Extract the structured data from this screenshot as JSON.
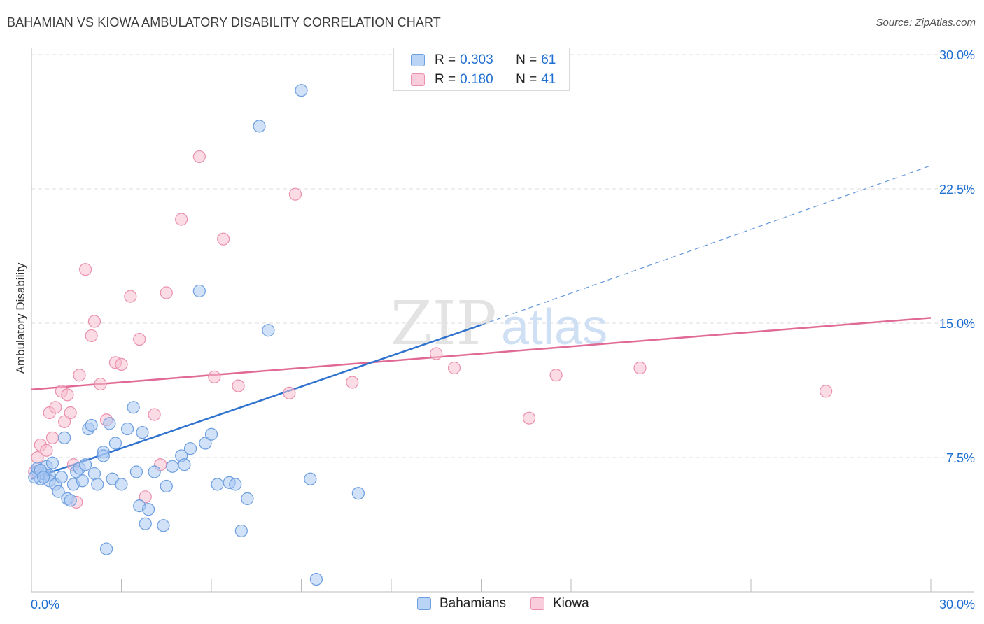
{
  "header": {
    "title": "BAHAMIAN VS KIOWA AMBULATORY DISABILITY CORRELATION CHART",
    "source": "Source: ZipAtlas.com"
  },
  "legend": {
    "items": [
      {
        "r_label": "R =",
        "r_value": "0.303",
        "n_label": "N =",
        "n_value": "61"
      },
      {
        "r_label": "R =",
        "r_value": "0.180",
        "n_label": "N =",
        "n_value": "41"
      }
    ]
  },
  "bottom_legend": [
    "Bahamians",
    "Kiowa"
  ],
  "watermark": {
    "zip": "ZIP",
    "atlas": "atlas"
  },
  "colors": {
    "bahamians_fill": "#a9c9f2",
    "bahamians_stroke": "#6d9ee0",
    "bahamians_line": "#2f73cf",
    "kiowa_fill": "#f7bfd0",
    "kiowa_stroke": "#eb8fae",
    "kiowa_line": "#e06a95",
    "tick_label": "#1f6fd1",
    "grid": "#dcdcdc"
  },
  "chart_data": {
    "type": "scatter",
    "title": "BAHAMIAN VS KIOWA AMBULATORY DISABILITY CORRELATION CHART",
    "xlabel": "",
    "ylabel": "Ambulatory Disability",
    "xlim": [
      0,
      30
    ],
    "ylim": [
      0,
      30
    ],
    "x_tick_labels": [
      "0.0%",
      "30.0%"
    ],
    "y_ticks": [
      7.5,
      15.0,
      22.5,
      30.0
    ],
    "y_tick_labels": [
      "7.5%",
      "15.0%",
      "22.5%",
      "30.0%"
    ],
    "grid": "horizontal dashed",
    "legend_placement": "top-center",
    "series": [
      {
        "name": "Bahamians",
        "r": 0.303,
        "n": 61,
        "trend": {
          "x": [
            0,
            15
          ],
          "y": [
            6.3,
            14.9
          ],
          "dashed_extension": {
            "x": [
              15,
              30
            ],
            "y": [
              14.9,
              23.8
            ]
          }
        },
        "points": [
          [
            0.2,
            6.7
          ],
          [
            0.3,
            6.3
          ],
          [
            0.4,
            6.6
          ],
          [
            0.5,
            7.0
          ],
          [
            0.6,
            6.5
          ],
          [
            0.6,
            6.2
          ],
          [
            0.7,
            7.2
          ],
          [
            0.8,
            6.0
          ],
          [
            0.9,
            5.6
          ],
          [
            1.0,
            6.4
          ],
          [
            1.1,
            8.6
          ],
          [
            1.2,
            5.2
          ],
          [
            1.3,
            5.1
          ],
          [
            1.4,
            6.0
          ],
          [
            1.5,
            6.7
          ],
          [
            1.6,
            6.9
          ],
          [
            1.7,
            6.2
          ],
          [
            1.8,
            7.1
          ],
          [
            1.9,
            9.1
          ],
          [
            2.0,
            9.3
          ],
          [
            2.1,
            6.6
          ],
          [
            2.2,
            6.0
          ],
          [
            2.4,
            7.8
          ],
          [
            2.4,
            7.6
          ],
          [
            2.5,
            2.4
          ],
          [
            2.6,
            9.4
          ],
          [
            2.7,
            6.3
          ],
          [
            2.8,
            8.3
          ],
          [
            3.0,
            6.0
          ],
          [
            3.2,
            9.1
          ],
          [
            3.4,
            10.3
          ],
          [
            3.5,
            6.7
          ],
          [
            3.6,
            4.8
          ],
          [
            3.7,
            8.9
          ],
          [
            3.8,
            3.8
          ],
          [
            3.9,
            4.6
          ],
          [
            4.1,
            6.7
          ],
          [
            4.4,
            3.7
          ],
          [
            4.5,
            5.9
          ],
          [
            4.7,
            7.0
          ],
          [
            5.0,
            7.6
          ],
          [
            5.1,
            7.1
          ],
          [
            5.3,
            8.0
          ],
          [
            5.6,
            16.8
          ],
          [
            5.8,
            8.3
          ],
          [
            6.0,
            8.8
          ],
          [
            6.2,
            6.0
          ],
          [
            6.6,
            6.1
          ],
          [
            6.8,
            6.0
          ],
          [
            7.0,
            3.4
          ],
          [
            7.2,
            5.2
          ],
          [
            7.6,
            26.0
          ],
          [
            7.9,
            14.6
          ],
          [
            9.0,
            28.0
          ],
          [
            9.3,
            6.3
          ],
          [
            9.5,
            0.7
          ],
          [
            10.9,
            5.5
          ],
          [
            0.1,
            6.4
          ],
          [
            0.2,
            6.9
          ],
          [
            0.3,
            6.8
          ],
          [
            0.4,
            6.4
          ]
        ]
      },
      {
        "name": "Kiowa",
        "r": 0.18,
        "n": 41,
        "trend": {
          "x": [
            0,
            30
          ],
          "y": [
            11.3,
            15.3
          ]
        },
        "points": [
          [
            0.1,
            6.7
          ],
          [
            0.2,
            7.5
          ],
          [
            0.3,
            8.2
          ],
          [
            0.5,
            7.9
          ],
          [
            0.6,
            10.0
          ],
          [
            0.7,
            8.6
          ],
          [
            0.8,
            10.3
          ],
          [
            1.0,
            11.2
          ],
          [
            1.1,
            9.5
          ],
          [
            1.2,
            11.0
          ],
          [
            1.3,
            10.0
          ],
          [
            1.4,
            7.1
          ],
          [
            1.5,
            5.0
          ],
          [
            1.6,
            12.1
          ],
          [
            1.8,
            18.0
          ],
          [
            2.0,
            14.3
          ],
          [
            2.1,
            15.1
          ],
          [
            2.3,
            11.6
          ],
          [
            2.5,
            9.6
          ],
          [
            2.8,
            12.8
          ],
          [
            3.0,
            12.7
          ],
          [
            3.3,
            16.5
          ],
          [
            3.6,
            14.1
          ],
          [
            3.8,
            5.3
          ],
          [
            4.1,
            9.9
          ],
          [
            4.3,
            7.1
          ],
          [
            4.5,
            16.7
          ],
          [
            5.0,
            20.8
          ],
          [
            5.6,
            24.3
          ],
          [
            6.1,
            12.0
          ],
          [
            6.4,
            19.7
          ],
          [
            6.9,
            11.5
          ],
          [
            8.6,
            11.1
          ],
          [
            8.8,
            22.2
          ],
          [
            10.7,
            11.7
          ],
          [
            13.5,
            13.3
          ],
          [
            14.1,
            12.5
          ],
          [
            16.6,
            9.7
          ],
          [
            17.5,
            12.1
          ],
          [
            20.3,
            12.5
          ],
          [
            26.5,
            11.2
          ]
        ]
      }
    ]
  }
}
